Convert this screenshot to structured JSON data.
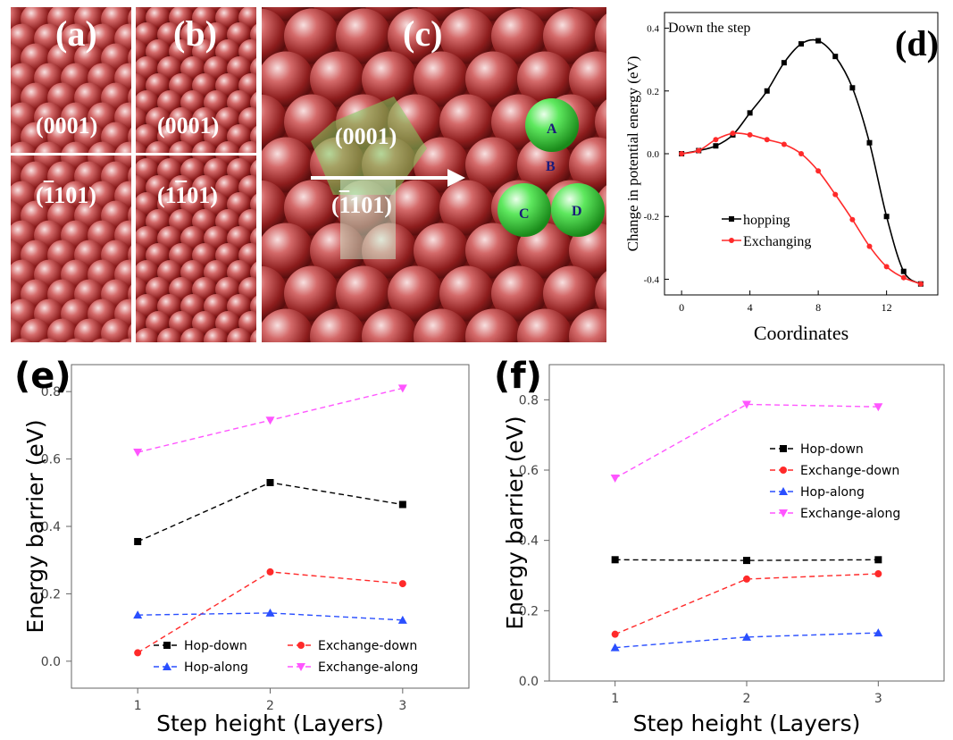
{
  "panels": {
    "a": {
      "label": "(a)",
      "top_facet": "(0001)",
      "bottom_facet_bar": "1",
      "bottom_facet_rest": "101)",
      "bottom_facet_open": "("
    },
    "b": {
      "label": "(b)",
      "top_facet": "(0001)",
      "bottom_facet_text": "(1",
      "bottom_facet_bar": "1",
      "bottom_facet_rest": "01)"
    },
    "c": {
      "label": "(c)",
      "top_facet": "(0001)",
      "bottom_facet_open": "(",
      "bottom_facet_bar": "1",
      "bottom_facet_rest": "101)",
      "sites": [
        "A",
        "B",
        "C",
        "D"
      ]
    },
    "d": {
      "label": "(d)"
    },
    "e": {
      "label": "(e)"
    },
    "f": {
      "label": "(f)"
    }
  },
  "colors": {
    "black": "#000000",
    "red": "#ff2a2a",
    "blue": "#2a4fff",
    "magenta": "#ff55ff",
    "sphere": "#b03030",
    "adatom": "#40e040"
  },
  "chart_data": [
    {
      "id": "d",
      "type": "line",
      "title": "Down the step",
      "xlabel": "Coordinates",
      "ylabel": "Change in potential energy (eV)",
      "xlim": [
        -1,
        15
      ],
      "ylim": [
        -0.45,
        0.45
      ],
      "xticks": [
        0,
        4,
        8,
        12
      ],
      "yticks": [
        -0.4,
        -0.2,
        0.0,
        0.2,
        0.4
      ],
      "ytick_labels": [
        "-0.4",
        "-0.2",
        "0.0",
        "0.2",
        "0.4"
      ],
      "legend_position": "center-left",
      "series": [
        {
          "name": "hopping",
          "color": "#000000",
          "marker": "square",
          "x": [
            0,
            1,
            2,
            3,
            4,
            5,
            6,
            7,
            8,
            9,
            10,
            11,
            12,
            13,
            14
          ],
          "values": [
            0.0,
            0.01,
            0.025,
            0.06,
            0.13,
            0.2,
            0.29,
            0.35,
            0.36,
            0.31,
            0.21,
            0.035,
            -0.2,
            -0.375,
            -0.415
          ]
        },
        {
          "name": "Exchanging",
          "color": "#ff2a2a",
          "marker": "circle",
          "x": [
            0,
            1,
            2,
            3,
            4,
            5,
            6,
            7,
            8,
            9,
            10,
            11,
            12,
            13,
            14
          ],
          "values": [
            0.0,
            0.01,
            0.045,
            0.065,
            0.06,
            0.045,
            0.03,
            0.0,
            -0.055,
            -0.13,
            -0.21,
            -0.295,
            -0.36,
            -0.395,
            -0.415
          ]
        }
      ]
    },
    {
      "id": "e",
      "type": "line",
      "xlabel": "Step height (Layers)",
      "ylabel": "Energy barrier (eV)",
      "x": [
        1,
        2,
        3
      ],
      "xticks": [
        "1",
        "2",
        "3"
      ],
      "xlim": [
        0.5,
        3.5
      ],
      "ylim": [
        -0.08,
        0.88
      ],
      "yticks": [
        0.0,
        0.2,
        0.4,
        0.6,
        0.8
      ],
      "ytick_labels": [
        "0.0",
        "0.2",
        "0.4",
        "0.6",
        "0.8"
      ],
      "legend_position": "bottom",
      "series": [
        {
          "name": "Hop-down",
          "color": "#000000",
          "marker": "square",
          "values": [
            0.355,
            0.53,
            0.465
          ]
        },
        {
          "name": "Exchange-down",
          "color": "#ff2a2a",
          "marker": "circle",
          "values": [
            0.025,
            0.265,
            0.23
          ]
        },
        {
          "name": "Hop-along",
          "color": "#2a4fff",
          "marker": "triangle-up",
          "values": [
            0.137,
            0.143,
            0.122
          ]
        },
        {
          "name": "Exchange-along",
          "color": "#ff55ff",
          "marker": "triangle-down",
          "values": [
            0.62,
            0.715,
            0.81
          ]
        }
      ]
    },
    {
      "id": "f",
      "type": "line",
      "xlabel": "Step height (Layers)",
      "ylabel": "Energy barrier (eV)",
      "x": [
        1,
        2,
        3
      ],
      "xticks": [
        "1",
        "2",
        "3"
      ],
      "xlim": [
        0.5,
        3.5
      ],
      "ylim": [
        0.0,
        0.9
      ],
      "yticks": [
        0.0,
        0.2,
        0.4,
        0.6,
        0.8
      ],
      "ytick_labels": [
        "0.0",
        "0.2",
        "0.4",
        "0.6",
        "0.8"
      ],
      "legend_position": "top-right",
      "series": [
        {
          "name": "Hop-down",
          "color": "#000000",
          "marker": "square",
          "values": [
            0.345,
            0.343,
            0.345
          ]
        },
        {
          "name": "Exchange-down",
          "color": "#ff2a2a",
          "marker": "circle",
          "values": [
            0.133,
            0.29,
            0.305
          ]
        },
        {
          "name": "Hop-along",
          "color": "#2a4fff",
          "marker": "triangle-up",
          "values": [
            0.095,
            0.125,
            0.137
          ]
        },
        {
          "name": "Exchange-along",
          "color": "#ff55ff",
          "marker": "triangle-down",
          "values": [
            0.577,
            0.787,
            0.78
          ]
        }
      ]
    }
  ]
}
